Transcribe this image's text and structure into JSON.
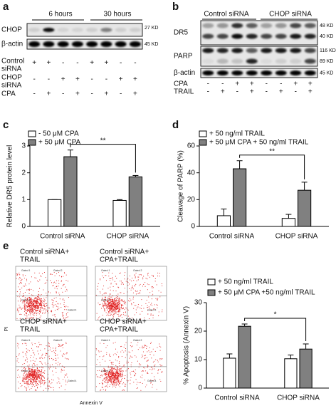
{
  "panel_labels": [
    "a",
    "b",
    "c",
    "d",
    "e"
  ],
  "blot_a": {
    "time_labels": [
      "6 hours",
      "30 hours"
    ],
    "bands": [
      {
        "name": "CHOP",
        "size": "27 KD"
      },
      {
        "name": "β-actin",
        "size": "45 KD"
      }
    ],
    "rows": [
      {
        "label_lines": [
          "Control",
          "siRNA"
        ],
        "signs": [
          "+",
          "+",
          "-",
          "-",
          "+",
          "+",
          "-",
          "-"
        ]
      },
      {
        "label_lines": [
          "CHOP",
          "siRNA"
        ],
        "signs": [
          "-",
          "-",
          "+",
          "+",
          "-",
          "-",
          "+",
          "+"
        ]
      },
      {
        "label_lines": [
          "CPA"
        ],
        "signs": [
          "-",
          "+",
          "-",
          "+",
          "-",
          "+",
          "-",
          "+"
        ]
      }
    ]
  },
  "blot_b": {
    "group_labels": [
      "Control siRNA",
      "CHOP siRNA"
    ],
    "bands": [
      {
        "name": "DR5",
        "sizes": [
          "48 KD",
          "40 KD"
        ]
      },
      {
        "name": "PARP",
        "sizes": [
          "116 KD",
          "89 KD"
        ]
      },
      {
        "name": "β-actin",
        "sizes": [
          "45 KD"
        ]
      }
    ],
    "rows": [
      {
        "label": "CPA",
        "signs": [
          "-",
          "-",
          "+",
          "+",
          "-",
          "-",
          "+",
          "+"
        ]
      },
      {
        "label": "TRAIL",
        "signs": [
          "-",
          "+",
          "-",
          "+",
          "-",
          "+",
          "-",
          "+"
        ]
      }
    ]
  },
  "flow": {
    "plots": [
      {
        "title_lines": [
          "Control siRNA+",
          "TRAIL"
        ]
      },
      {
        "title_lines": [
          "Control siRNA+",
          "CPA+TRAIL"
        ]
      },
      {
        "title_lines": [
          "CHOP siRNA+",
          "TRAIL"
        ]
      },
      {
        "title_lines": [
          "CHOP siRNA+",
          "CPA+TRAIL"
        ]
      }
    ],
    "gates": [
      "Gated 1",
      "Gated 2",
      "Gated 3",
      "Gated 4"
    ],
    "x_label": "Annexin V",
    "y_label": "PI"
  },
  "chart_data": [
    {
      "type": "bar",
      "y_label": "Relative DR5 protein level",
      "categories": [
        "Control siRNA",
        "CHOP siRNA"
      ],
      "series": [
        {
          "name": "-  50 μM CPA",
          "color": "#ffffff",
          "values": [
            1,
            0.97
          ],
          "errors": [
            0,
            0.03
          ]
        },
        {
          "name": "+ 50 μM CPA",
          "color": "#808080",
          "values": [
            2.6,
            1.85
          ],
          "errors": [
            0.25,
            0.05
          ]
        }
      ],
      "ylim": [
        0,
        3
      ],
      "yticks": [
        0,
        1,
        2,
        3
      ],
      "annotation": "**"
    },
    {
      "type": "bar",
      "y_label": "Cleavage of PARP (%)",
      "categories": [
        "Control siRNA",
        "CHOP siRNA"
      ],
      "series": [
        {
          "name": "+ 50 ng/ml TRAIL",
          "color": "#ffffff",
          "values": [
            8,
            6
          ],
          "errors": [
            5,
            3
          ]
        },
        {
          "name": "+ 50 μM CPA + 50 ng/ml TRAIL",
          "color": "#808080",
          "values": [
            43,
            27
          ],
          "errors": [
            6,
            6
          ]
        }
      ],
      "ylim": [
        0,
        60
      ],
      "yticks": [
        0,
        20,
        40,
        60
      ],
      "annotation": "**"
    },
    {
      "type": "bar",
      "y_label": "% Apoptosis  (Annexin V)",
      "categories": [
        "Control siRNA",
        "CHOP siRNA"
      ],
      "series": [
        {
          "name": "+ 50 ng/ml TRAIL",
          "color": "#ffffff",
          "values": [
            10.5,
            10.3
          ],
          "errors": [
            1.5,
            1.3
          ]
        },
        {
          "name": "+ 50 μM CPA +50 ng/ml TRAIL",
          "color": "#808080",
          "values": [
            21.7,
            13.7
          ],
          "errors": [
            0.8,
            1.8
          ]
        }
      ],
      "ylim": [
        0,
        30
      ],
      "yticks": [
        0,
        10,
        20,
        30
      ],
      "annotation": "*"
    }
  ]
}
